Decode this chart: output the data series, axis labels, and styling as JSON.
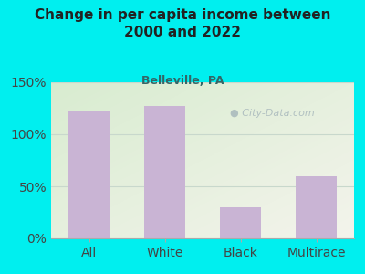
{
  "categories": [
    "All",
    "White",
    "Black",
    "Multirace"
  ],
  "values": [
    122,
    127,
    30,
    60
  ],
  "bar_color": "#c9b4d4",
  "title": "Change in per capita income between\n2000 and 2022",
  "subtitle": "Belleville, PA",
  "title_color": "#222222",
  "subtitle_color": "#336666",
  "background_color": "#00efef",
  "ylim": [
    0,
    150
  ],
  "yticks": [
    0,
    50,
    100,
    150
  ],
  "ytick_labels": [
    "0%",
    "50%",
    "100%",
    "150%"
  ],
  "grid_color": "#c8d8cc",
  "watermark": "City-Data.com",
  "watermark_color": "#a8b8bc",
  "plot_left_color": "#d8ecd0",
  "plot_right_color": "#f4f4ec"
}
